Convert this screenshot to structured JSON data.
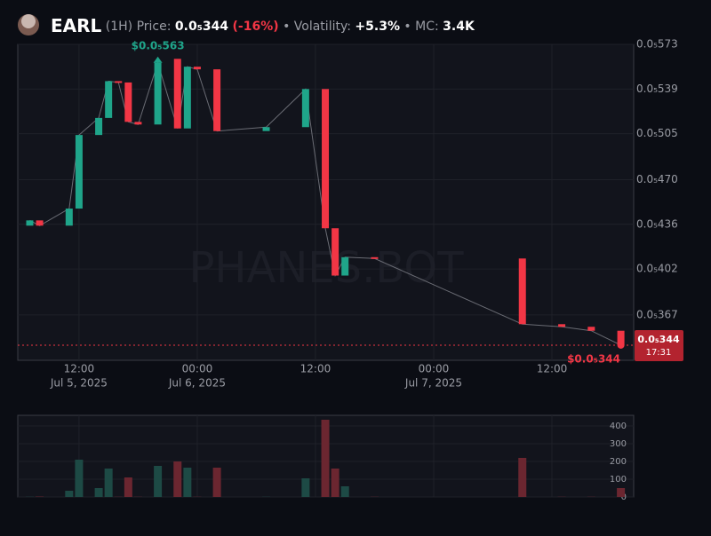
{
  "header": {
    "symbol": "EARL",
    "interval": "(1H)",
    "price_label": "Price:",
    "price": "0.0₅344",
    "change": "(-16%)",
    "volatility_label": "• Volatility:",
    "volatility": "+5.3%",
    "mc_label": "• MC:",
    "mc": "3.4K"
  },
  "chart_data": [
    {
      "type": "candlestick",
      "watermark": "PHANES.BOT",
      "up_color": "#1fa58a",
      "down_color": "#f23645",
      "x": [
        "2025-07-05T07:00",
        "2025-07-05T08:00",
        "2025-07-05T11:00",
        "2025-07-05T12:00",
        "2025-07-05T14:00",
        "2025-07-05T15:00",
        "2025-07-05T16:00",
        "2025-07-05T17:00",
        "2025-07-05T18:00",
        "2025-07-05T20:00",
        "2025-07-05T22:00",
        "2025-07-05T23:00",
        "2025-07-06T00:00",
        "2025-07-06T02:00",
        "2025-07-06T07:00",
        "2025-07-06T11:00",
        "2025-07-06T13:00",
        "2025-07-06T14:00",
        "2025-07-06T15:00",
        "2025-07-06T18:00",
        "2025-07-07T09:00",
        "2025-07-07T13:00",
        "2025-07-07T16:00",
        "2025-07-07T19:00"
      ],
      "open": [
        4.35e-06,
        4.39e-06,
        4.35e-06,
        4.48e-06,
        5.04e-06,
        5.17e-06,
        5.45e-06,
        5.44e-06,
        5.14e-06,
        5.12e-06,
        5.62e-06,
        5.09e-06,
        5.56e-06,
        5.54e-06,
        5.07e-06,
        5.1e-06,
        5.39e-06,
        4.33e-06,
        3.97e-06,
        4.11e-06,
        4.1e-06,
        3.6e-06,
        3.58e-06,
        3.55e-06
      ],
      "close": [
        4.39e-06,
        4.35e-06,
        4.48e-06,
        5.04e-06,
        5.17e-06,
        5.45e-06,
        5.44e-06,
        5.14e-06,
        5.12e-06,
        5.59e-06,
        5.09e-06,
        5.56e-06,
        5.54e-06,
        5.07e-06,
        5.1e-06,
        5.39e-06,
        4.33e-06,
        3.97e-06,
        4.11e-06,
        4.1e-06,
        3.6e-06,
        3.58e-06,
        3.55e-06,
        3.44e-06
      ],
      "xlim": [
        "2025-07-05T05:47",
        "2025-07-07T20:18"
      ],
      "xticks": [
        {
          "value": "2025-07-05T12:00",
          "label": "12:00"
        },
        {
          "value": "2025-07-06T00:00",
          "label": "00:00"
        },
        {
          "value": "2025-07-06T12:00",
          "label": "12:00"
        },
        {
          "value": "2025-07-07T00:00",
          "label": "00:00"
        },
        {
          "value": "2025-07-07T12:00",
          "label": "12:00"
        }
      ],
      "date_labels": [
        {
          "value": "2025-07-05T12:00",
          "label": "Jul 5, 2025"
        },
        {
          "value": "2025-07-06T00:00",
          "label": "Jul 6, 2025"
        },
        {
          "value": "2025-07-07T00:00",
          "label": "Jul 7, 2025"
        }
      ],
      "ylim": [
        3.325e-06,
        5.73e-06
      ],
      "yticks": [
        {
          "value": 5.73e-06,
          "label": "0.0₅573"
        },
        {
          "value": 5.39e-06,
          "label": "0.0₅539"
        },
        {
          "value": 5.05e-06,
          "label": "0.0₅505"
        },
        {
          "value": 4.7e-06,
          "label": "0.0₅470"
        },
        {
          "value": 4.36e-06,
          "label": "0.0₅436"
        },
        {
          "value": 4.02e-06,
          "label": "0.0₅402"
        },
        {
          "value": 3.67e-06,
          "label": "0.0₅367"
        }
      ],
      "high_annotation": {
        "x": "2025-07-05T20:00",
        "value": 5.63e-06,
        "label": "$0.0₅563"
      },
      "last_price": {
        "value": 3.44e-06,
        "label": "$0.0₅344",
        "tag_label": "0.0₅344",
        "time_label": "17:31",
        "color": "#b3232f"
      }
    },
    {
      "type": "bar",
      "vol_up_color": "#1d4a45",
      "vol_down_color": "#6b2630",
      "values": [
        1,
        2,
        35,
        210,
        50,
        160,
        1,
        110,
        1,
        175,
        200,
        165,
        1,
        165,
        1,
        105,
        435,
        160,
        60,
        1,
        220,
        1,
        1,
        50
      ],
      "ylim": [
        0,
        460
      ],
      "yticks": [
        0,
        100,
        200,
        300,
        400
      ]
    }
  ]
}
